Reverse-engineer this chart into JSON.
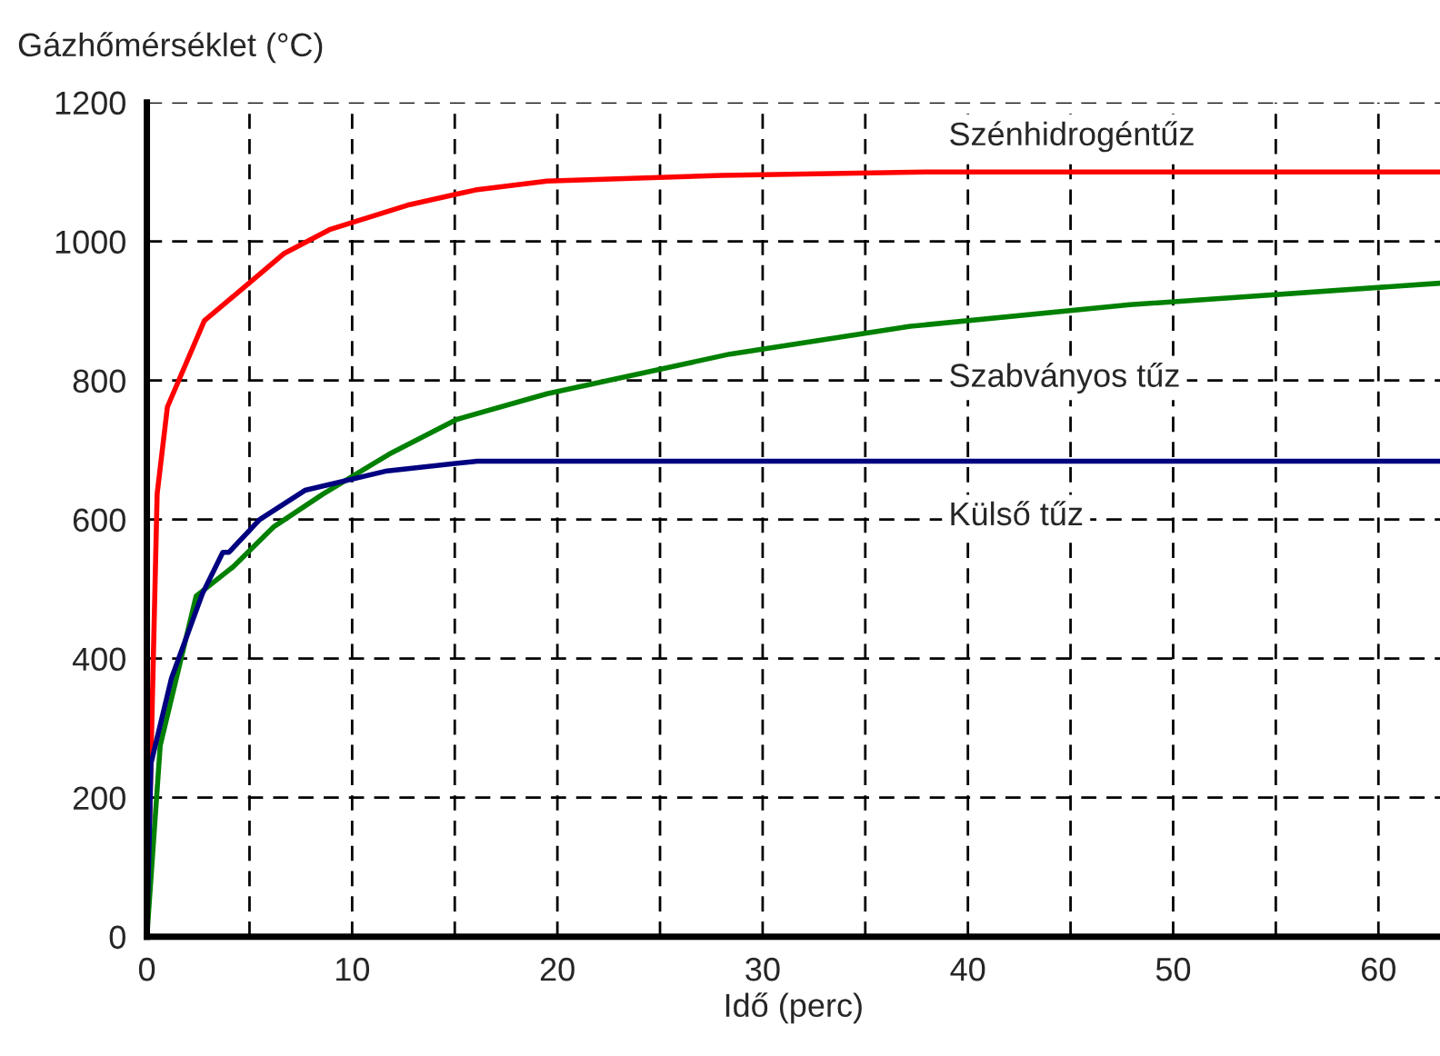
{
  "chart_data": {
    "type": "line",
    "xlabel": "Idő (perc)",
    "ylabel": "Gázhőmérséklet (°C)",
    "xlim": [
      0,
      63
    ],
    "ylim": [
      0,
      1200
    ],
    "xticks": [
      0,
      {
        "value": 5,
        "label": null
      },
      10,
      {
        "value": 15,
        "label": null
      },
      20,
      {
        "value": 25,
        "label": null
      },
      30,
      {
        "value": 35,
        "label": null
      },
      40,
      {
        "value": 45,
        "label": null
      },
      50,
      {
        "value": 55,
        "label": null
      },
      60
    ],
    "yticks": [
      0,
      200,
      400,
      600,
      800,
      1000,
      1200
    ],
    "grid": true,
    "legend": false,
    "line_style": "solid",
    "marker": "none",
    "series": [
      {
        "name": "Szénhidrogéntűz",
        "color": "#ff0000",
        "x": [
          0,
          0.5,
          1,
          2.8,
          5.3,
          6.7,
          8.9,
          12.8,
          16,
          19.5,
          28,
          38,
          63
        ],
        "values": [
          0,
          637,
          762,
          886,
          948,
          983,
          1017,
          1053,
          1074,
          1087,
          1095,
          1100,
          1100
        ]
      },
      {
        "name": "Szabványos tűz",
        "color": "#008000",
        "x": [
          0,
          0.65,
          2.4,
          4.2,
          6.2,
          8.6,
          11.8,
          15.1,
          19.5,
          28.4,
          37.2,
          47.9,
          63
        ],
        "values": [
          0,
          275,
          490,
          532,
          590,
          637,
          694,
          744,
          781,
          838,
          878,
          909,
          940
        ]
      },
      {
        "name": "Külső tűz",
        "color": "#000080",
        "x": [
          0,
          0.2,
          1.2,
          2.7,
          3.7,
          4,
          5.5,
          7.7,
          11.7,
          16.1,
          63
        ],
        "values": [
          0,
          249,
          372,
          493,
          553,
          553,
          600,
          642,
          670,
          684,
          684
        ]
      }
    ]
  }
}
